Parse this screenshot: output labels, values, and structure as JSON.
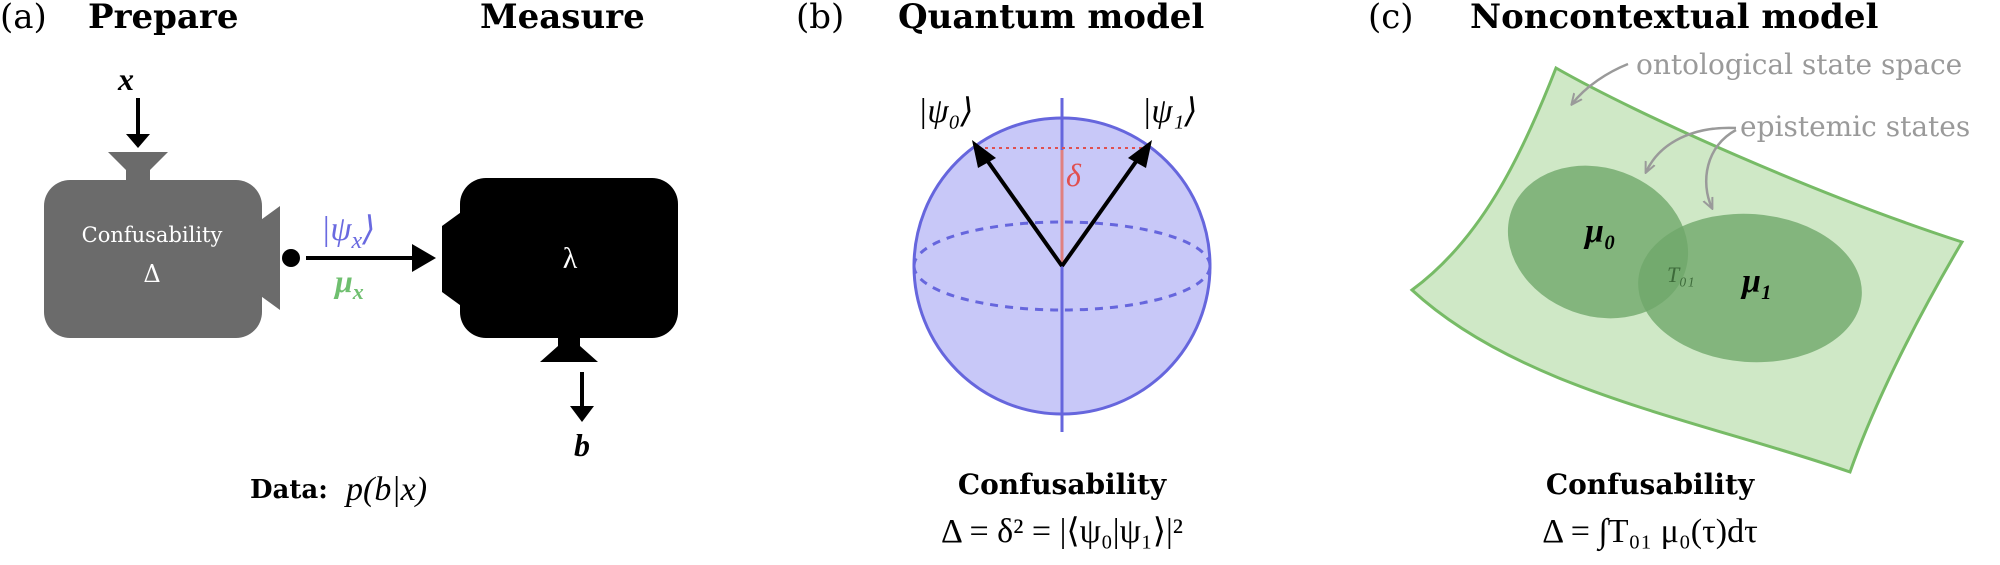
{
  "panel_a": {
    "letter": "(a)",
    "prepare_title": "Prepare",
    "measure_title": "Measure",
    "input_x": "x",
    "prep_device_label": "Confusability",
    "prep_device_symbol": "Δ",
    "state_label": "|ψ_x⟩",
    "state_ket_open": "|ψ",
    "state_sub": "x",
    "state_ket_close": "⟩",
    "dist_label": "μ_x",
    "dist_mu": "μ",
    "dist_sub": "x",
    "meas_device_symbol": "λ",
    "output_b": "b",
    "data_label": "Data:",
    "data_formula": "p(b|x)"
  },
  "panel_b": {
    "letter": "(b)",
    "title": "Quantum model",
    "ket0": "|ψ₀⟩",
    "ket1": "|ψ₁⟩",
    "delta": "δ",
    "caption_title": "Confusability",
    "caption_formula": "Δ = δ² = |⟨ψ₀|ψ₁⟩|²"
  },
  "panel_c": {
    "letter": "(c)",
    "title": "Noncontextual model",
    "ontological_label": "ontological state space",
    "epistemic_label": "epistemic states",
    "mu0": "μ₀",
    "mu1": "μ₁",
    "overlap": "T₀₁",
    "caption_title": "Confusability",
    "caption_formula": "Δ = ∫T₀₁ μ₀(τ)dτ"
  },
  "colors": {
    "prep_device": "#6b6b6b",
    "meas_device": "#000000",
    "state_blue": "#6a6ae0",
    "dist_green": "#6fbf6f",
    "bloch_fill": "#c8c8f8",
    "bloch_stroke": "#6666dd",
    "delta_red": "#e05050",
    "space_fill": "#cfe8c6",
    "space_stroke": "#77bb66",
    "epistemic_fill": "#6fa86a",
    "annotation_gray": "#9a9a9a"
  }
}
